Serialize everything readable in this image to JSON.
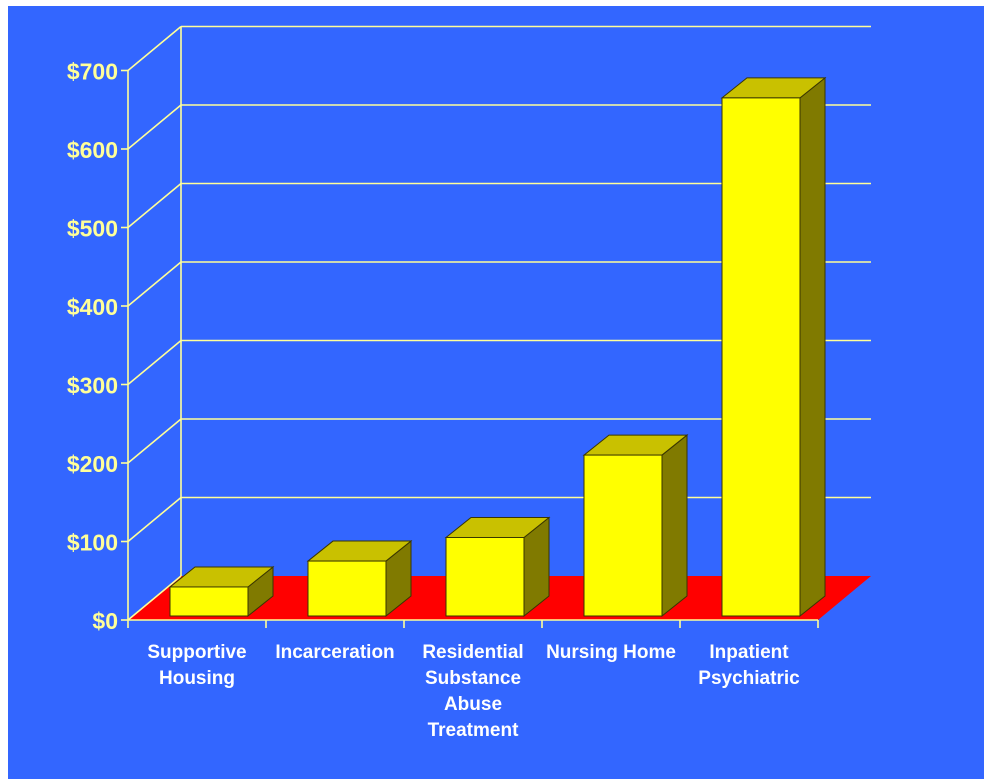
{
  "chart_data": {
    "type": "bar",
    "style": "3d",
    "categories": [
      [
        "Supportive",
        "Housing"
      ],
      [
        "Incarceration"
      ],
      [
        "Residential",
        "Substance",
        "Abuse",
        "Treatment"
      ],
      [
        "Nursing  Home"
      ],
      [
        "Inpatient",
        "Psychiatric"
      ]
    ],
    "values": [
      37,
      70,
      100,
      205,
      660
    ],
    "ylim": [
      0,
      700
    ],
    "yticks": [
      "$0",
      "$100",
      "$200",
      "$300",
      "$400",
      "$500",
      "$600",
      "$700"
    ],
    "grid": true,
    "colors": {
      "background": "#3366ff",
      "floor": "#ff0000",
      "bar_front": "#ffff00",
      "bar_top": "#c9c100",
      "bar_side": "#807a00",
      "grid": "#ffff99",
      "label": "#ffff99",
      "category_label": "#ffffff"
    }
  }
}
